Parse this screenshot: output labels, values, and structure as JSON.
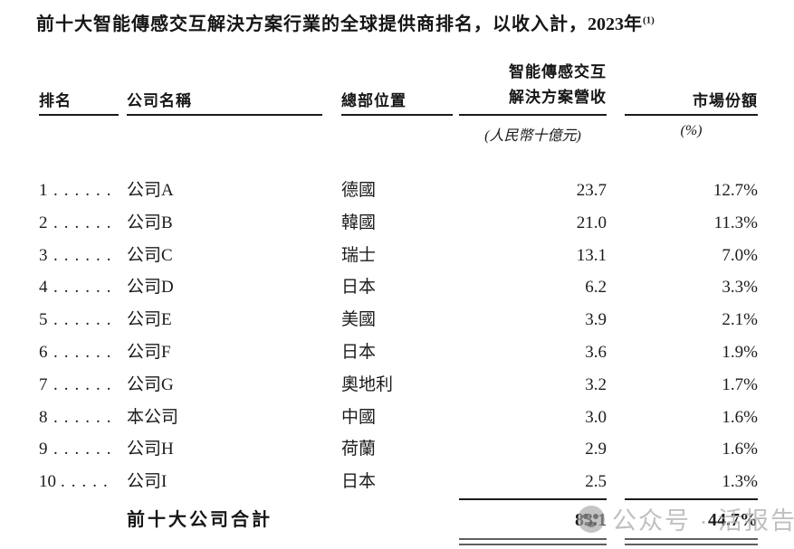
{
  "title": {
    "text": "前十大智能傳感交互解決方案行業的全球提供商排名，以收入計，",
    "year": "2023",
    "year_suffix": "年",
    "footnote_ref": "(1)"
  },
  "table": {
    "headers": {
      "rank": "排名",
      "company": "公司名稱",
      "location": "總部位置",
      "revenue_line1": "智能傳感交互",
      "revenue_line2": "解決方案營收",
      "revenue_unit": "(人民幣十億元)",
      "share": "市場份額",
      "share_unit": "(%)"
    },
    "rows": [
      {
        "rank": "1",
        "dots": "......",
        "company": "公司A",
        "location": "德國",
        "revenue": "23.7",
        "share": "12.7%"
      },
      {
        "rank": "2",
        "dots": "......",
        "company": "公司B",
        "location": "韓國",
        "revenue": "21.0",
        "share": "11.3%"
      },
      {
        "rank": "3",
        "dots": "......",
        "company": "公司C",
        "location": "瑞士",
        "revenue": "13.1",
        "share": "7.0%"
      },
      {
        "rank": "4",
        "dots": "......",
        "company": "公司D",
        "location": "日本",
        "revenue": "6.2",
        "share": "3.3%"
      },
      {
        "rank": "5",
        "dots": "......",
        "company": "公司E",
        "location": "美國",
        "revenue": "3.9",
        "share": "2.1%"
      },
      {
        "rank": "6",
        "dots": "......",
        "company": "公司F",
        "location": "日本",
        "revenue": "3.6",
        "share": "1.9%"
      },
      {
        "rank": "7",
        "dots": "......",
        "company": "公司G",
        "location": "奧地利",
        "revenue": "3.2",
        "share": "1.7%"
      },
      {
        "rank": "8",
        "dots": "......",
        "company": "本公司",
        "location": "中國",
        "revenue": "3.0",
        "share": "1.6%"
      },
      {
        "rank": "9",
        "dots": "......",
        "company": "公司H",
        "location": "荷蘭",
        "revenue": "2.9",
        "share": "1.6%"
      },
      {
        "rank": "10",
        "dots": ".....",
        "company": "公司I",
        "location": "日本",
        "revenue": "2.5",
        "share": "1.3%"
      }
    ],
    "total": {
      "label": "前十大公司合計",
      "revenue": "83.1",
      "share": "44.7%"
    }
  },
  "watermark": {
    "icon": "wechat-account-logo-icon",
    "text": "公众号 · 活报告"
  },
  "colors": {
    "text": "#1b1b1b",
    "rule": "#1b1b1b",
    "double_rule": "#5f5f5f",
    "watermark": "#b0b0b0",
    "background": "#ffffff"
  }
}
